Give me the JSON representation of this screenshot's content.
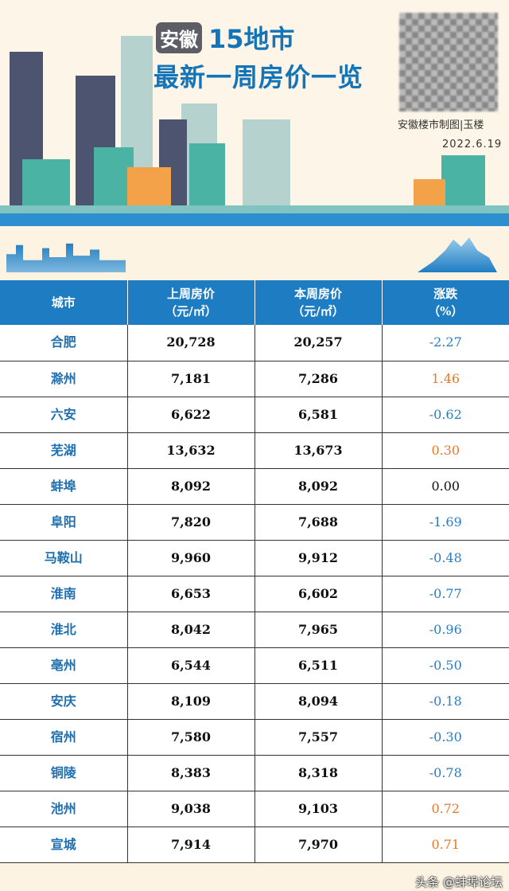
{
  "header": {
    "badge": "安徽",
    "title_line1": "15地市",
    "title_line2": "最新一周房价一览",
    "credit": "安徽楼市制图|玉楼",
    "date": "2022.6.19"
  },
  "colors": {
    "header_blue": "#1e7dc2",
    "title_blue": "#1474b8",
    "rise": "#e8782c",
    "fall": "#2a7cc0"
  },
  "table": {
    "columns": [
      {
        "l1": "城市",
        "l2": ""
      },
      {
        "l1": "上周房价",
        "l2": "（元/㎡）"
      },
      {
        "l1": "本周房价",
        "l2": "（元/㎡）"
      },
      {
        "l1": "涨跌",
        "l2": "（%）"
      }
    ],
    "rows": [
      {
        "city": "合肥",
        "last": "20,728",
        "this": "20,257",
        "change": "-2.27",
        "trend": "neg"
      },
      {
        "city": "滁州",
        "last": "7,181",
        "this": "7,286",
        "change": "1.46",
        "trend": "pos"
      },
      {
        "city": "六安",
        "last": "6,622",
        "this": "6,581",
        "change": "-0.62",
        "trend": "neg"
      },
      {
        "city": "芜湖",
        "last": "13,632",
        "this": "13,673",
        "change": "0.30",
        "trend": "pos"
      },
      {
        "city": "蚌埠",
        "last": "8,092",
        "this": "8,092",
        "change": "0.00",
        "trend": "zero"
      },
      {
        "city": "阜阳",
        "last": "7,820",
        "this": "7,688",
        "change": "-1.69",
        "trend": "neg"
      },
      {
        "city": "马鞍山",
        "last": "9,960",
        "this": "9,912",
        "change": "-0.48",
        "trend": "neg"
      },
      {
        "city": "淮南",
        "last": "6,653",
        "this": "6,602",
        "change": "-0.77",
        "trend": "neg"
      },
      {
        "city": "淮北",
        "last": "8,042",
        "this": "7,965",
        "change": "-0.96",
        "trend": "neg"
      },
      {
        "city": "亳州",
        "last": "6,544",
        "this": "6,511",
        "change": "-0.50",
        "trend": "neg"
      },
      {
        "city": "安庆",
        "last": "8,109",
        "this": "8,094",
        "change": "-0.18",
        "trend": "neg"
      },
      {
        "city": "宿州",
        "last": "7,580",
        "this": "7,557",
        "change": "-0.30",
        "trend": "neg"
      },
      {
        "city": "铜陵",
        "last": "8,383",
        "this": "8,318",
        "change": "-0.78",
        "trend": "neg"
      },
      {
        "city": "池州",
        "last": "9,038",
        "this": "9,103",
        "change": "0.72",
        "trend": "pos"
      },
      {
        "city": "宣城",
        "last": "7,914",
        "this": "7,970",
        "change": "0.71",
        "trend": "pos"
      }
    ]
  },
  "watermark": "头条 @蚌埠论坛"
}
